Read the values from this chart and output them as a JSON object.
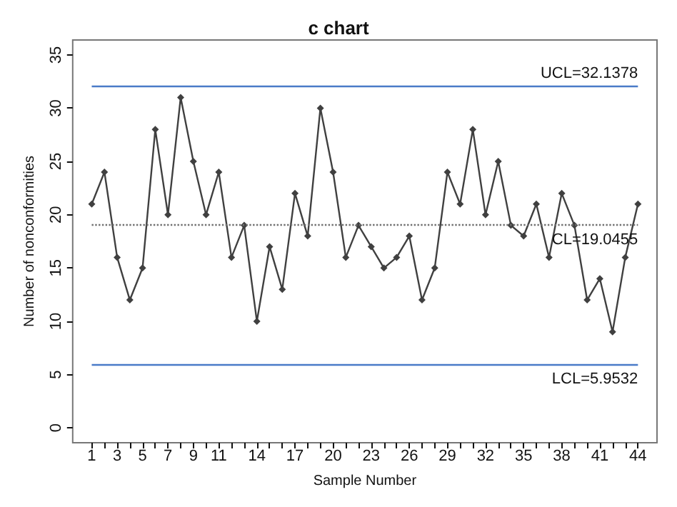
{
  "chart_data": {
    "type": "line",
    "title": "c chart",
    "xlabel": "Sample Number",
    "ylabel": "Number of nonconformities",
    "x": [
      1,
      2,
      3,
      4,
      5,
      6,
      7,
      8,
      9,
      10,
      11,
      12,
      13,
      14,
      15,
      16,
      17,
      18,
      19,
      20,
      21,
      22,
      23,
      24,
      25,
      26,
      27,
      28,
      29,
      30,
      31,
      32,
      33,
      34,
      35,
      36,
      37,
      38,
      39,
      40,
      41,
      42,
      43,
      44
    ],
    "series": [
      {
        "color": "#404040",
        "values": [
          21,
          24,
          16,
          12,
          15,
          28,
          20,
          31,
          25,
          20,
          24,
          16,
          19,
          10,
          17,
          13,
          22,
          18,
          30,
          24,
          16,
          19,
          17,
          15,
          16,
          18,
          12,
          15,
          24,
          21,
          28,
          20,
          25,
          19,
          18,
          21,
          16,
          22,
          19,
          12,
          14,
          9,
          16,
          21
        ]
      }
    ],
    "xlim": [
      -0.5,
      45.5
    ],
    "xticks": [
      1,
      {
        "value": 2,
        "label": null
      },
      3,
      {
        "value": 4,
        "label": null
      },
      5,
      {
        "value": 6,
        "label": null
      },
      7,
      {
        "value": 8,
        "label": null
      },
      9,
      {
        "value": 10,
        "label": null
      },
      11,
      {
        "value": 12,
        "label": null
      },
      {
        "value": 13,
        "label": null
      },
      14,
      {
        "value": 15,
        "label": null
      },
      {
        "value": 16,
        "label": null
      },
      17,
      {
        "value": 18,
        "label": null
      },
      {
        "value": 19,
        "label": null
      },
      20,
      {
        "value": 21,
        "label": null
      },
      {
        "value": 22,
        "label": null
      },
      23,
      {
        "value": 24,
        "label": null
      },
      {
        "value": 25,
        "label": null
      },
      26,
      {
        "value": 27,
        "label": null
      },
      {
        "value": 28,
        "label": null
      },
      29,
      {
        "value": 30,
        "label": null
      },
      {
        "value": 31,
        "label": null
      },
      32,
      {
        "value": 33,
        "label": null
      },
      {
        "value": 34,
        "label": null
      },
      35,
      {
        "value": 36,
        "label": null
      },
      {
        "value": 37,
        "label": null
      },
      38,
      {
        "value": 39,
        "label": null
      },
      {
        "value": 40,
        "label": null
      },
      41,
      {
        "value": 42,
        "label": null
      },
      {
        "value": 43,
        "label": null
      },
      44
    ],
    "ylim": [
      -1.4,
      36.4
    ],
    "yticks": [
      0,
      5,
      10,
      15,
      20,
      25,
      30,
      35
    ],
    "ref_lines": [
      {
        "axis": "y",
        "value": 32.1378,
        "label": "UCL=32.1378",
        "color": "#4a7bc8",
        "line_style": "solid"
      },
      {
        "axis": "y",
        "value": 19.0455,
        "label": "CL=19.0455",
        "color": "#707070",
        "line_style": "dotted"
      },
      {
        "axis": "y",
        "value": 5.9532,
        "label": "LCL=5.9532",
        "color": "#4a7bc8",
        "line_style": "solid"
      }
    ],
    "grid": false,
    "marker": "diamond",
    "line_style": "solid"
  }
}
